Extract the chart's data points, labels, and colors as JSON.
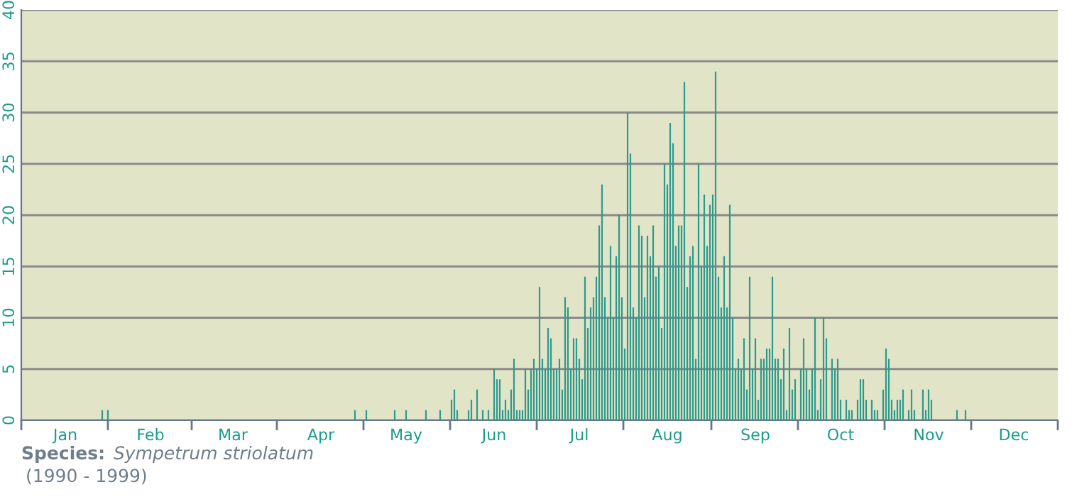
{
  "chart_data": {
    "type": "bar",
    "categories": [
      null,
      null,
      null,
      null,
      null,
      null,
      null,
      null,
      null,
      null,
      null,
      null,
      null,
      null,
      null,
      "Jan",
      null,
      null,
      null,
      null,
      null,
      null,
      null,
      null,
      null,
      null,
      null,
      null,
      null,
      null,
      null,
      null,
      null,
      null,
      null,
      null,
      null,
      null,
      null,
      null,
      null,
      null,
      null,
      null,
      null,
      "Feb",
      null,
      null,
      null,
      null,
      null,
      null,
      null,
      null,
      null,
      null,
      null,
      null,
      null,
      null,
      null,
      null,
      null,
      null,
      null,
      null,
      null,
      null,
      null,
      null,
      null,
      null,
      null,
      null,
      "Mar",
      null,
      null,
      null,
      null,
      null,
      null,
      null,
      null,
      null,
      null,
      null,
      null,
      null,
      null,
      null,
      null,
      null,
      null,
      null,
      null,
      null,
      null,
      null,
      null,
      null,
      null,
      null,
      null,
      null,
      null,
      "Apr",
      null,
      null,
      null,
      null,
      null,
      null,
      null,
      null,
      null,
      null,
      null,
      null,
      null,
      null,
      null,
      null,
      null,
      null,
      null,
      null,
      null,
      null,
      null,
      null,
      null,
      null,
      null,
      null,
      null,
      "May",
      null,
      null,
      null,
      null,
      null,
      null,
      null,
      null,
      null,
      null,
      null,
      null,
      null,
      null,
      null,
      null,
      null,
      null,
      null,
      null,
      null,
      null,
      null,
      null,
      null,
      null,
      null,
      null,
      null,
      null,
      "Jun",
      null,
      null,
      null,
      null,
      null,
      null,
      null,
      null,
      null,
      null,
      null,
      null,
      null,
      null,
      null,
      null,
      null,
      null,
      null,
      null,
      null,
      null,
      null,
      null,
      null,
      null,
      null,
      null,
      null,
      "Jul",
      null,
      null,
      null,
      null,
      null,
      null,
      null,
      null,
      null,
      null,
      null,
      null,
      null,
      null,
      null,
      null,
      null,
      null,
      null,
      null,
      null,
      null,
      null,
      null,
      null,
      null,
      null,
      null,
      null,
      null,
      "Aug",
      null,
      null,
      null,
      null,
      null,
      null,
      null,
      null,
      null,
      null,
      null,
      null,
      null,
      null,
      null,
      null,
      null,
      null,
      null,
      null,
      null,
      null,
      null,
      null,
      null,
      null,
      null,
      null,
      null,
      null,
      "Sep",
      null,
      null,
      null,
      null,
      null,
      null,
      null,
      null,
      null,
      null,
      null,
      null,
      null,
      null,
      null,
      null,
      null,
      null,
      null,
      null,
      null,
      null,
      null,
      null,
      null,
      null,
      null,
      null,
      null,
      "Oct",
      null,
      null,
      null,
      null,
      null,
      null,
      null,
      null,
      null,
      null,
      null,
      null,
      null,
      null,
      null,
      null,
      null,
      null,
      null,
      null,
      null,
      null,
      null,
      null,
      null,
      null,
      null,
      null,
      null,
      null,
      "Nov",
      null,
      null,
      null,
      null,
      null,
      null,
      null,
      null,
      null,
      null,
      null,
      null,
      null,
      null,
      null,
      null,
      null,
      null,
      null,
      null,
      null,
      null,
      null,
      null,
      null,
      null,
      null,
      null,
      null,
      "Dec",
      null,
      null,
      null,
      null,
      null,
      null,
      null,
      null,
      null,
      null,
      null,
      null,
      null,
      null,
      null
    ],
    "values": [
      0,
      0,
      0,
      0,
      0,
      0,
      0,
      0,
      0,
      0,
      0,
      0,
      0,
      0,
      0,
      0,
      0,
      0,
      0,
      0,
      0,
      0,
      0,
      0,
      0,
      0,
      0,
      0,
      1,
      0,
      1,
      0,
      0,
      0,
      0,
      0,
      0,
      0,
      0,
      0,
      0,
      0,
      0,
      0,
      0,
      0,
      0,
      0,
      0,
      0,
      0,
      0,
      0,
      0,
      0,
      0,
      0,
      0,
      0,
      0,
      0,
      0,
      0,
      0,
      0,
      0,
      0,
      0,
      0,
      0,
      0,
      0,
      0,
      0,
      0,
      0,
      0,
      0,
      0,
      0,
      0,
      0,
      0,
      0,
      0,
      0,
      0,
      0,
      0,
      0,
      0,
      0,
      0,
      0,
      0,
      0,
      0,
      0,
      0,
      0,
      0,
      0,
      0,
      0,
      0,
      0,
      0,
      0,
      0,
      0,
      0,
      0,
      0,
      0,
      0,
      0,
      0,
      1,
      0,
      0,
      0,
      1,
      0,
      0,
      0,
      0,
      0,
      0,
      0,
      0,
      0,
      1,
      0,
      0,
      0,
      1,
      0,
      0,
      0,
      0,
      0,
      0,
      1,
      0,
      0,
      0,
      0,
      1,
      0,
      0,
      0,
      2,
      3,
      1,
      0,
      0,
      0,
      1,
      2,
      0,
      3,
      0,
      1,
      0,
      1,
      0,
      5,
      4,
      4,
      1,
      2,
      1,
      3,
      6,
      1,
      1,
      1,
      5,
      3,
      5,
      6,
      5,
      13,
      6,
      5,
      9,
      8,
      5,
      5,
      6,
      3,
      12,
      11,
      5,
      8,
      8,
      6,
      4,
      14,
      9,
      11,
      12,
      14,
      19,
      23,
      12,
      10,
      17,
      10,
      16,
      20,
      12,
      7,
      30,
      26,
      11,
      10,
      19,
      18,
      12,
      18,
      16,
      19,
      14,
      15,
      9,
      25,
      23,
      29,
      27,
      17,
      19,
      19,
      33,
      13,
      16,
      17,
      6,
      25,
      15,
      22,
      17,
      21,
      22,
      34,
      14,
      11,
      16,
      11,
      21,
      10,
      5,
      6,
      5,
      8,
      3,
      14,
      5,
      8,
      2,
      6,
      6,
      7,
      7,
      14,
      6,
      6,
      4,
      7,
      1,
      9,
      3,
      4,
      0,
      5,
      8,
      5,
      3,
      5,
      10,
      1,
      4,
      10,
      8,
      0,
      6,
      5,
      6,
      2,
      0,
      2,
      1,
      1,
      0,
      2,
      4,
      4,
      2,
      0,
      2,
      1,
      1,
      0,
      3,
      7,
      6,
      2,
      1,
      2,
      2,
      3,
      0,
      1,
      3,
      1,
      0,
      0,
      3,
      1,
      3,
      2,
      0,
      0,
      0,
      0,
      0,
      0,
      0,
      0,
      1,
      0,
      0,
      1,
      0,
      0,
      0,
      0,
      0,
      0,
      0,
      0,
      0,
      0,
      0,
      0,
      0,
      0,
      0,
      0,
      0,
      0,
      0,
      0,
      0,
      0,
      0,
      0,
      0,
      0,
      0,
      0,
      0,
      0,
      0,
      0
    ],
    "color": "#2e9a8c",
    "ylim": [
      0,
      40
    ],
    "yticks": [
      0,
      5,
      10,
      15,
      20,
      25,
      30,
      35,
      40
    ],
    "grid": "y",
    "annotations": [
      "Species:",
      "Sympetrum striolatum",
      "(1990 - 1999)"
    ]
  }
}
